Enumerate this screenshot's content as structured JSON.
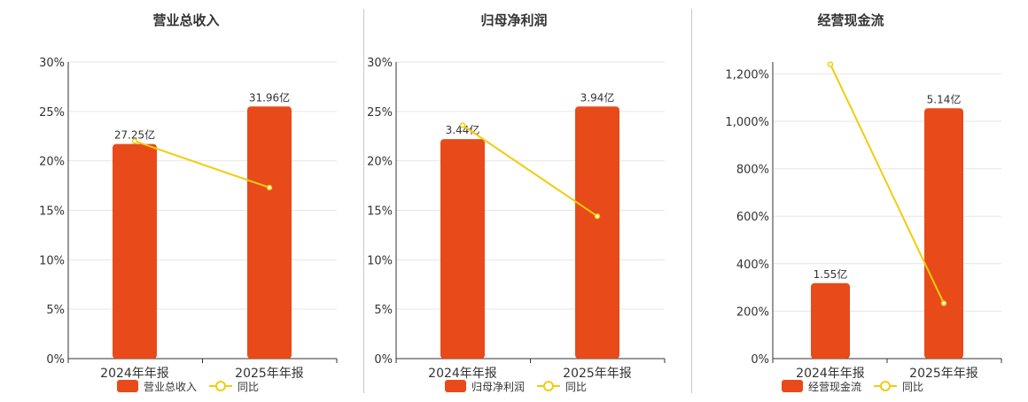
{
  "colors": {
    "bar": "#e84a1a",
    "line": "#f2cc0c",
    "grid": "#e6e6e6",
    "axis": "#333333",
    "text": "#333333"
  },
  "chart_data": [
    {
      "type": "bar",
      "title": "营业总收入",
      "categories": [
        "2024年年报",
        "2025年年报"
      ],
      "series": [
        {
          "name": "营业总收入",
          "type": "bar",
          "values": [
            21.7,
            25.5
          ],
          "labels": [
            "27.25亿",
            "31.96亿"
          ]
        },
        {
          "name": "同比",
          "type": "line",
          "values": [
            22.0,
            17.3
          ]
        }
      ],
      "ylim": [
        0,
        30
      ],
      "yticks": [
        0,
        5,
        10,
        15,
        20,
        25,
        30
      ],
      "ytick_labels": [
        "0%",
        "5%",
        "10%",
        "15%",
        "20%",
        "25%",
        "30%"
      ],
      "grid": true,
      "legend": "bottom"
    },
    {
      "type": "bar",
      "title": "归母净利润",
      "categories": [
        "2024年年报",
        "2025年年报"
      ],
      "series": [
        {
          "name": "归母净利润",
          "type": "bar",
          "values": [
            22.2,
            25.5
          ],
          "labels": [
            "3.44亿",
            "3.94亿"
          ]
        },
        {
          "name": "同比",
          "type": "line",
          "values": [
            23.6,
            14.4
          ]
        }
      ],
      "ylim": [
        0,
        30
      ],
      "yticks": [
        0,
        5,
        10,
        15,
        20,
        25,
        30
      ],
      "ytick_labels": [
        "0%",
        "5%",
        "10%",
        "15%",
        "20%",
        "25%",
        "30%"
      ],
      "grid": true,
      "legend": "bottom"
    },
    {
      "type": "bar",
      "title": "经营现金流",
      "categories": [
        "2024年年报",
        "2025年年报"
      ],
      "series": [
        {
          "name": "经营现金流",
          "type": "bar",
          "values": [
            318,
            1055
          ],
          "labels": [
            "1.55亿",
            "5.14亿"
          ]
        },
        {
          "name": "同比",
          "type": "line",
          "values": [
            1240,
            233
          ]
        }
      ],
      "ylim": [
        0,
        1250
      ],
      "yticks": [
        0,
        200,
        400,
        600,
        800,
        1000,
        1200
      ],
      "ytick_labels": [
        "0%",
        "200%",
        "400%",
        "600%",
        "800%",
        "1,000%",
        "1,200%"
      ],
      "grid": true,
      "legend": "bottom"
    }
  ]
}
